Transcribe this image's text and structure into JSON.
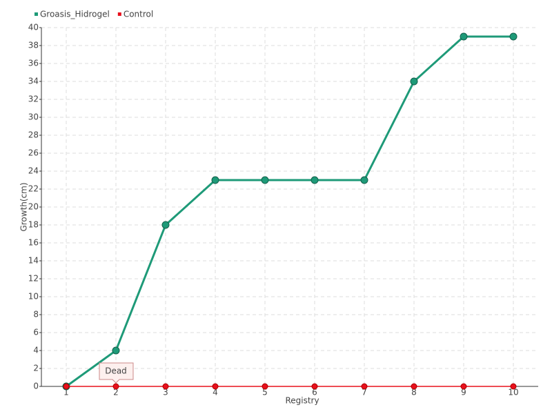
{
  "chart_data": {
    "type": "line",
    "x_label": "Registry",
    "y_label": "Growth(cm)",
    "categories": [
      "1",
      "2",
      "3",
      "4",
      "5",
      "6",
      "7",
      "8",
      "9",
      "10"
    ],
    "series": [
      {
        "name": "Groasis_Hidrogel",
        "color": "#1e9a78",
        "values": [
          0,
          4,
          18,
          23,
          23,
          23,
          23,
          34,
          39,
          39
        ]
      },
      {
        "name": "Control",
        "color": "#e8101c",
        "values": [
          0,
          0,
          0,
          0,
          0,
          0,
          0,
          0,
          0,
          0
        ]
      }
    ],
    "annotation": "Dead",
    "ylim": [
      0,
      40
    ],
    "yticks": [
      0,
      2,
      4,
      6,
      8,
      10,
      12,
      14,
      16,
      18,
      20,
      22,
      24,
      26,
      28,
      30,
      32,
      34,
      36,
      38,
      40
    ],
    "grid": true
  }
}
